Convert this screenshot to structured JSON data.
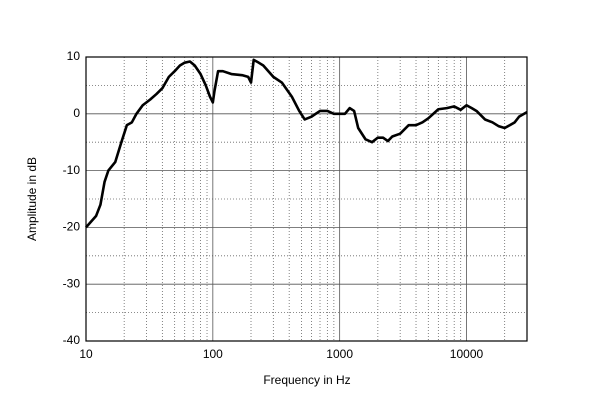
{
  "chart_data": {
    "type": "line",
    "x_label": "Frequency in Hz",
    "y_label": "Amplitude in dB",
    "log_x": true,
    "grid": true,
    "color": "#000000",
    "x": [
      10,
      12,
      13,
      14,
      15,
      17,
      19,
      21,
      23,
      25,
      28,
      32,
      36,
      40,
      45,
      50,
      55,
      60,
      66,
      72,
      80,
      88,
      95,
      100,
      103,
      110,
      120,
      140,
      170,
      190,
      200,
      210,
      230,
      250,
      300,
      350,
      420,
      480,
      530,
      600,
      700,
      800,
      900,
      1000,
      1100,
      1200,
      1300,
      1400,
      1600,
      1800,
      2000,
      2200,
      2400,
      2600,
      3000,
      3500,
      4000,
      4500,
      5000,
      6000,
      7000,
      8000,
      9000,
      10000,
      11000,
      12000,
      14000,
      16000,
      18000,
      20000,
      22000,
      24000,
      26000,
      30000
    ],
    "values": [
      -20,
      -18,
      -16,
      -12,
      -10,
      -8.5,
      -5,
      -2,
      -1.5,
      0,
      1.5,
      2.5,
      3.5,
      4.5,
      6.5,
      7.5,
      8.5,
      9,
      9.2,
      8.5,
      7,
      5,
      3,
      2,
      4,
      7.5,
      7.5,
      7,
      6.8,
      6.5,
      5.5,
      9.5,
      9,
      8.5,
      6.5,
      5.5,
      3,
      0.5,
      -1,
      -0.5,
      0.5,
      0.5,
      0,
      0,
      0,
      1,
      0.5,
      -2.5,
      -4.5,
      -5,
      -4.2,
      -4.2,
      -4.8,
      -4,
      -3.5,
      -2,
      -2,
      -1.5,
      -0.8,
      0.8,
      1,
      1.3,
      0.7,
      1.5,
      1,
      0.5,
      -1,
      -1.5,
      -2.2,
      -2.5,
      -2,
      -1.5,
      -0.5,
      0.3
    ],
    "xlim": [
      10,
      30000
    ],
    "ylim": [
      -40,
      10
    ],
    "xticks": [
      10,
      100,
      1000,
      10000
    ],
    "xminorticks": [
      20,
      30,
      40,
      50,
      60,
      70,
      80,
      90,
      200,
      300,
      400,
      500,
      600,
      700,
      800,
      900,
      2000,
      3000,
      4000,
      5000,
      6000,
      7000,
      8000,
      9000,
      20000
    ],
    "yticks": [
      -40,
      -30,
      -20,
      -10,
      0,
      10
    ],
    "yminorticks": [
      -35,
      -25,
      -15,
      -5,
      5
    ]
  }
}
